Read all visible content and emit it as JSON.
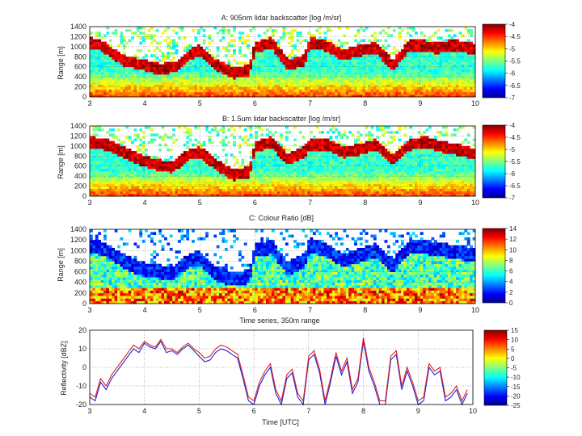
{
  "chart_data": [
    {
      "type": "heatmap",
      "title": "A: 905nm lidar backscatter [log /m/sr]",
      "xlabel": "",
      "ylabel": "Range [m]",
      "xlim": [
        3,
        10
      ],
      "ylim": [
        0,
        1400
      ],
      "x_ticks": [
        "3",
        "4",
        "5",
        "6",
        "7",
        "8",
        "9",
        "10"
      ],
      "y_ticks": [
        "0",
        "200",
        "400",
        "600",
        "800",
        "1000",
        "1200",
        "1400"
      ],
      "grid": true,
      "colorbar": {
        "range": [
          -7,
          -4
        ],
        "ticks": [
          "-4",
          "-4.5",
          "-5",
          "-5.5",
          "-6",
          "-6.5",
          "-7"
        ]
      },
      "cloud_top_profile": [
        [
          3.0,
          1150
        ],
        [
          3.2,
          1100
        ],
        [
          3.4,
          950
        ],
        [
          3.6,
          800
        ],
        [
          3.8,
          750
        ],
        [
          4.0,
          700
        ],
        [
          4.3,
          620
        ],
        [
          4.6,
          680
        ],
        [
          4.8,
          900
        ],
        [
          5.0,
          1000
        ],
        [
          5.3,
          700
        ],
        [
          5.6,
          550
        ],
        [
          5.9,
          600
        ],
        [
          6.0,
          1050
        ],
        [
          6.3,
          1150
        ],
        [
          6.6,
          700
        ],
        [
          6.9,
          800
        ],
        [
          7.0,
          1150
        ],
        [
          7.3,
          1100
        ],
        [
          7.6,
          900
        ],
        [
          7.9,
          1000
        ],
        [
          8.2,
          1050
        ],
        [
          8.5,
          700
        ],
        [
          8.8,
          1100
        ],
        [
          9.0,
          1100
        ],
        [
          9.3,
          1050
        ],
        [
          9.6,
          1100
        ],
        [
          9.9,
          1050
        ],
        [
          10.0,
          1000
        ]
      ]
    },
    {
      "type": "heatmap",
      "title": "B: 1.5um lidar backscatter [log /m/sr]",
      "xlabel": "",
      "ylabel": "Range [m]",
      "xlim": [
        3,
        10
      ],
      "ylim": [
        0,
        1400
      ],
      "x_ticks": [
        "3",
        "4",
        "5",
        "6",
        "7",
        "8",
        "9",
        "10"
      ],
      "y_ticks": [
        "0",
        "200",
        "400",
        "600",
        "800",
        "1000",
        "1200",
        "1400"
      ],
      "grid": true,
      "colorbar": {
        "range": [
          -7,
          -4
        ],
        "ticks": [
          "-4",
          "-4.5",
          "-5",
          "-5.5",
          "-6",
          "-6.5",
          "-7"
        ]
      },
      "cloud_top_profile": [
        [
          3.0,
          1150
        ],
        [
          3.3,
          1100
        ],
        [
          3.6,
          950
        ],
        [
          3.9,
          800
        ],
        [
          4.2,
          700
        ],
        [
          4.5,
          650
        ],
        [
          4.8,
          900
        ],
        [
          5.0,
          950
        ],
        [
          5.3,
          700
        ],
        [
          5.6,
          500
        ],
        [
          5.9,
          550
        ],
        [
          6.0,
          1050
        ],
        [
          6.3,
          1150
        ],
        [
          6.6,
          800
        ],
        [
          6.9,
          950
        ],
        [
          7.0,
          1100
        ],
        [
          7.3,
          1100
        ],
        [
          7.6,
          950
        ],
        [
          7.9,
          1000
        ],
        [
          8.2,
          1100
        ],
        [
          8.5,
          800
        ],
        [
          8.8,
          1100
        ],
        [
          9.1,
          1150
        ],
        [
          9.4,
          1050
        ],
        [
          9.7,
          1000
        ],
        [
          10.0,
          900
        ]
      ]
    },
    {
      "type": "heatmap",
      "title": "C: Colour Ratio [dB]",
      "xlabel": "",
      "ylabel": "Range [m]",
      "xlim": [
        3,
        10
      ],
      "ylim": [
        0,
        1400
      ],
      "x_ticks": [
        "3",
        "4",
        "5",
        "6",
        "7",
        "8",
        "9",
        "10"
      ],
      "y_ticks": [
        "0",
        "200",
        "400",
        "600",
        "800",
        "1000",
        "1200",
        "1400"
      ],
      "grid": true,
      "colorbar": {
        "range": [
          0,
          14
        ],
        "ticks": [
          "14",
          "12",
          "10",
          "8",
          "6",
          "4",
          "2",
          "0"
        ]
      },
      "cloud_top_profile": [
        [
          3.0,
          1200
        ],
        [
          3.3,
          1100
        ],
        [
          3.6,
          900
        ],
        [
          3.9,
          750
        ],
        [
          4.2,
          700
        ],
        [
          4.5,
          650
        ],
        [
          4.8,
          900
        ],
        [
          5.0,
          950
        ],
        [
          5.3,
          650
        ],
        [
          5.6,
          550
        ],
        [
          5.9,
          600
        ],
        [
          6.0,
          1100
        ],
        [
          6.3,
          1150
        ],
        [
          6.6,
          750
        ],
        [
          6.9,
          900
        ],
        [
          7.0,
          1200
        ],
        [
          7.3,
          1100
        ],
        [
          7.6,
          900
        ],
        [
          7.9,
          1000
        ],
        [
          8.2,
          1100
        ],
        [
          8.5,
          800
        ],
        [
          8.8,
          1150
        ],
        [
          9.1,
          1150
        ],
        [
          9.4,
          1100
        ],
        [
          9.7,
          1050
        ],
        [
          10.0,
          1000
        ]
      ]
    },
    {
      "type": "line",
      "title": "Time series, 350m range",
      "xlabel": "Time [UTC]",
      "ylabel": "Reflectivity [dBZ]",
      "xlim": [
        3,
        10
      ],
      "ylim": [
        -20,
        20
      ],
      "x_ticks": [
        "3",
        "4",
        "5",
        "6",
        "7",
        "8",
        "9",
        "10"
      ],
      "y_ticks": [
        "-20",
        "-10",
        "0",
        "10",
        "20"
      ],
      "grid": true,
      "colorbar": {
        "range": [
          -25,
          15
        ],
        "ticks": [
          "15",
          "10",
          "5",
          "0",
          "-5",
          "-10",
          "-15",
          "-20",
          "-25"
        ]
      },
      "series": [
        {
          "name": "",
          "color": "#2020d8",
          "x": [
            3.0,
            3.1,
            3.2,
            3.3,
            3.4,
            3.5,
            3.6,
            3.7,
            3.8,
            3.9,
            4.0,
            4.1,
            4.2,
            4.3,
            4.4,
            4.5,
            4.6,
            4.7,
            4.8,
            4.9,
            5.0,
            5.1,
            5.2,
            5.3,
            5.4,
            5.5,
            5.6,
            5.7,
            5.8,
            5.9,
            6.0,
            6.1,
            6.2,
            6.3,
            6.4,
            6.5,
            6.6,
            6.7,
            6.8,
            6.9,
            7.0,
            7.1,
            7.2,
            7.3,
            7.4,
            7.5,
            7.6,
            7.7,
            7.8,
            7.9,
            8.0,
            8.1,
            8.2,
            8.3,
            8.4,
            8.5,
            8.6,
            8.7,
            8.8,
            8.9,
            9.0,
            9.1,
            9.2,
            9.3,
            9.4,
            9.5,
            9.6,
            9.7,
            9.8,
            9.9
          ],
          "y": [
            -16,
            -18,
            -8,
            -12,
            -6,
            -2,
            2,
            6,
            10,
            8,
            13,
            11,
            10,
            14,
            8,
            9,
            7,
            10,
            12,
            9,
            6,
            3,
            4,
            8,
            10,
            9,
            7,
            5,
            -6,
            -18,
            -20,
            -10,
            -4,
            0,
            -14,
            -20,
            -6,
            -3,
            -16,
            -20,
            4,
            7,
            -3,
            -20,
            -8,
            6,
            -4,
            3,
            -14,
            -8,
            14,
            -2,
            -10,
            -20,
            -20,
            4,
            7,
            -12,
            -2,
            -10,
            -20,
            -18,
            0,
            -4,
            -2,
            -18,
            -16,
            -12,
            -20,
            -14
          ]
        },
        {
          "name": "",
          "color": "#e02020",
          "x": [
            3.0,
            3.1,
            3.2,
            3.3,
            3.4,
            3.5,
            3.6,
            3.7,
            3.8,
            3.9,
            4.0,
            4.1,
            4.2,
            4.3,
            4.4,
            4.5,
            4.6,
            4.7,
            4.8,
            4.9,
            5.0,
            5.1,
            5.2,
            5.3,
            5.4,
            5.5,
            5.6,
            5.7,
            5.8,
            5.9,
            6.0,
            6.1,
            6.2,
            6.3,
            6.4,
            6.5,
            6.6,
            6.7,
            6.8,
            6.9,
            7.0,
            7.1,
            7.2,
            7.3,
            7.4,
            7.5,
            7.6,
            7.7,
            7.8,
            7.9,
            8.0,
            8.1,
            8.2,
            8.3,
            8.4,
            8.5,
            8.6,
            8.7,
            8.8,
            8.9,
            9.0,
            9.1,
            9.2,
            9.3,
            9.4,
            9.5,
            9.6,
            9.7,
            9.8,
            9.9
          ],
          "y": [
            -14,
            -16,
            -6,
            -10,
            -4,
            0,
            4,
            8,
            12,
            10,
            14,
            12,
            11,
            15,
            10,
            10,
            8,
            11,
            13,
            10,
            8,
            5,
            6,
            10,
            12,
            11,
            9,
            7,
            -4,
            -16,
            -18,
            -8,
            -2,
            2,
            -12,
            -18,
            -4,
            -1,
            -14,
            -18,
            6,
            9,
            -1,
            -18,
            -6,
            8,
            -2,
            5,
            -12,
            -6,
            16,
            0,
            -8,
            -18,
            -18,
            6,
            9,
            -10,
            0,
            -8,
            -18,
            -16,
            2,
            -2,
            0,
            -16,
            -14,
            -10,
            -18,
            -12
          ]
        }
      ]
    }
  ]
}
